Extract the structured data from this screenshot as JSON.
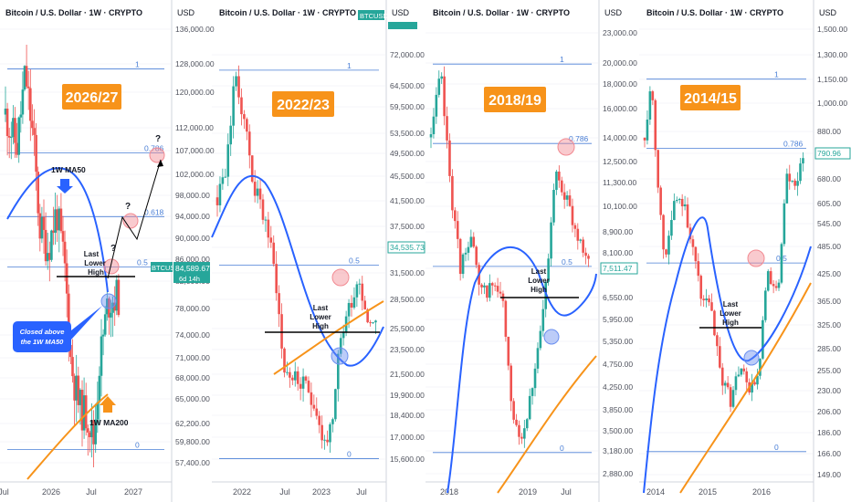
{
  "colors": {
    "up": "#26a69a",
    "down": "#ef5350",
    "ma50": "#2962ff",
    "ma200": "#f7931a",
    "fib": "#4a7fd6",
    "title_bg": "#f7931a",
    "grid": "#e9ecf1",
    "axis_text": "#131722",
    "price_tag": "#26a69a",
    "callout_bg": "#2962ff"
  },
  "chart_data": [
    {
      "type": "candlestick",
      "period_label": "2026/27",
      "title": "Bitcoin / U.S. Dollar · 1W · CRYPTO",
      "currency": "USD",
      "scale": "log",
      "y_ticks": [
        "136,000.00",
        "128,000.00",
        "120,000.00",
        "112,000.00",
        "107,000.00",
        "102,000.00",
        "98,000.00",
        "94,000.00",
        "90,000.00",
        "86,000.00",
        "82,000.00",
        "78,000.00",
        "74,000.00",
        "71,000.00",
        "68,000.00",
        "65,000.00",
        "62,200.00",
        "59,800.00",
        "57,400.00"
      ],
      "x_ticks": [
        "Jul",
        "2026",
        "Jul",
        "2027"
      ],
      "fib_levels": [
        {
          "label": "1",
          "value": 126000
        },
        {
          "label": "0.786",
          "value": 106500
        },
        {
          "label": "0.618",
          "value": 93800
        },
        {
          "label": "0.5",
          "value": 84800
        },
        {
          "label": "0",
          "value": 58900
        }
      ],
      "tag_ticker": "BTCUSD",
      "last_price": "84,589.67",
      "countdown": "6d 14h",
      "annotations": {
        "ma50": "1W MA50",
        "ma200": "1W MA200",
        "lower_high": "Last Lower High",
        "callout": "Closed above the 1W MA50",
        "question": "?"
      },
      "approx_ohlc_path": [
        [
          0,
          118000
        ],
        [
          0.05,
          107000
        ],
        [
          0.1,
          113000
        ],
        [
          0.16,
          126000
        ],
        [
          0.2,
          110000
        ],
        [
          0.24,
          90000
        ],
        [
          0.3,
          86000
        ],
        [
          0.34,
          92000
        ],
        [
          0.4,
          84000
        ],
        [
          0.46,
          68000
        ],
        [
          0.5,
          64500
        ],
        [
          0.56,
          64000
        ],
        [
          0.6,
          59800
        ],
        [
          0.64,
          66000
        ],
        [
          0.7,
          78000
        ],
        [
          0.74,
          82000
        ]
      ]
    },
    {
      "type": "candlestick",
      "period_label": "2022/23",
      "title": "Bitcoin / U.S. Dollar · 1W · CRYPTO",
      "currency": "USD",
      "scale": "log",
      "tag_ticker": "BTCUSD",
      "y_ticks": [
        "72,000.00",
        "64,500.00",
        "59,500.00",
        "53,500.00",
        "49,500.00",
        "45,500.00",
        "41,500.00",
        "37,500.00",
        "34,535.73",
        "31,500.00",
        "28,500.00",
        "25,500.00",
        "23,500.00",
        "21,500.00",
        "19,900.00",
        "18,400.00",
        "17,000.00",
        "15,600.00"
      ],
      "x_ticks": [
        "2022",
        "Jul",
        "2023",
        "Jul"
      ],
      "fib_levels": [
        {
          "label": "1",
          "value": 68000
        },
        {
          "label": "0.5",
          "value": 32500
        },
        {
          "label": "0",
          "value": 15600
        }
      ],
      "annotations": {
        "lower_high": "Last Lower High"
      }
    },
    {
      "type": "candlestick",
      "period_label": "2018/19",
      "title": "Bitcoin / U.S. Dollar · 1W · CRYPTO",
      "currency": "USD",
      "scale": "log",
      "y_ticks": [
        "23,000.00",
        "20,000.00",
        "18,000.00",
        "16,000.00",
        "14,000.00",
        "12,500.00",
        "11,300.00",
        "10,100.00",
        "8,900.00",
        "8,100.00",
        "7,511.47",
        "6,550.00",
        "5,950.00",
        "5,350.00",
        "4,750.00",
        "4,250.00",
        "3,850.00",
        "3,500.00",
        "3,180.00",
        "2,880.00"
      ],
      "x_ticks": [
        "2018",
        "2019",
        "Jul"
      ],
      "fib_levels": [
        {
          "label": "1",
          "value": 19800
        },
        {
          "label": "0.786",
          "value": 13600
        },
        {
          "label": "0.5",
          "value": 7600
        },
        {
          "label": "0",
          "value": 3150
        }
      ],
      "annotations": {
        "lower_high": "Last Lower High"
      }
    },
    {
      "type": "candlestick",
      "period_label": "2014/15",
      "title": "Bitcoin / U.S. Dollar · 1W · CRYPTO",
      "currency": "USD",
      "scale": "log",
      "y_ticks": [
        "1,500.00",
        "1,300.00",
        "1,150.00",
        "1,000.00",
        "880.00",
        "790.96",
        "680.00",
        "605.00",
        "545.00",
        "485.00",
        "425.00",
        "365.00",
        "325.00",
        "285.00",
        "255.00",
        "230.00",
        "206.00",
        "186.00",
        "166.00",
        "149.00"
      ],
      "x_ticks": [
        "2014",
        "2015",
        "2016"
      ],
      "fib_levels": [
        {
          "label": "1",
          "value": 1150
        },
        {
          "label": "0.786",
          "value": 805
        },
        {
          "label": "0.5",
          "value": 445
        },
        {
          "label": "0",
          "value": 168
        }
      ],
      "annotations": {
        "lower_high": "Last Lower High"
      }
    }
  ]
}
